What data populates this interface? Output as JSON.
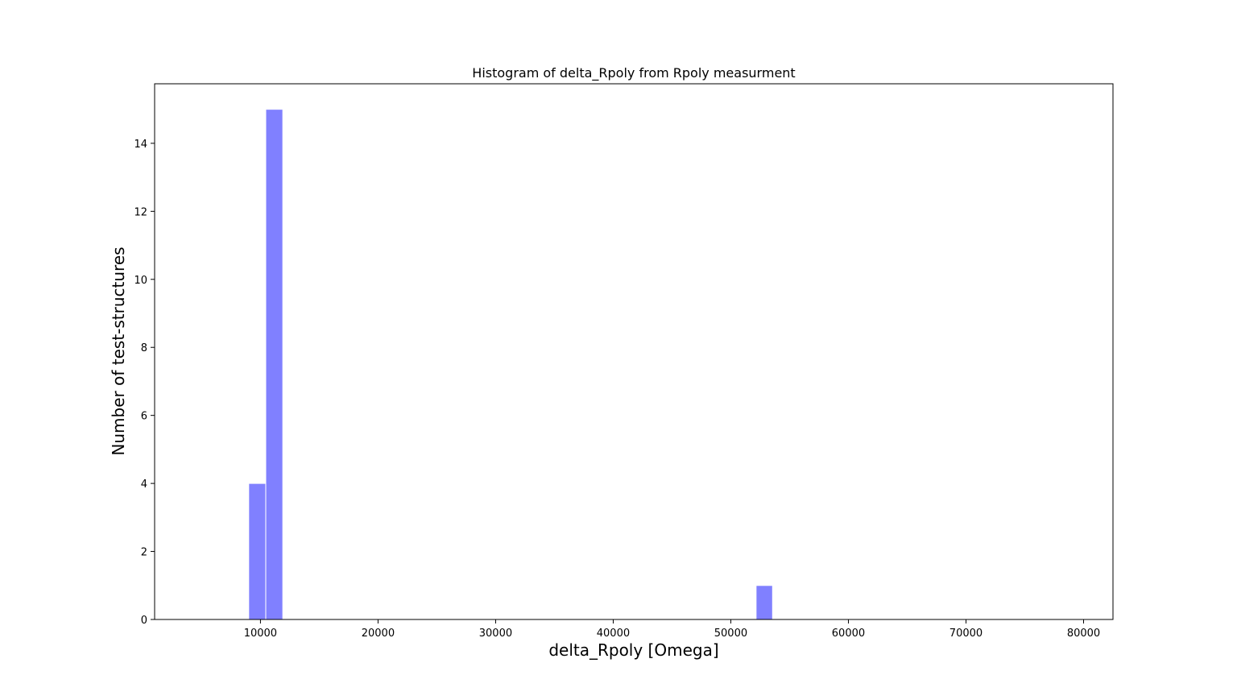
{
  "chart_data": {
    "type": "bar",
    "title": "Histogram of delta_Rpoly from Rpoly measurment",
    "xlabel": "delta_Rpoly [Omega]",
    "ylabel": "Number of test-structures",
    "xlim": [
      1000,
      82500
    ],
    "ylim": [
      0,
      15.75
    ],
    "xticks": [
      10000,
      20000,
      30000,
      40000,
      50000,
      60000,
      70000,
      80000
    ],
    "yticks": [
      0,
      2,
      4,
      6,
      8,
      10,
      12,
      14
    ],
    "bar_color": "#8080ff",
    "edge_color": "#ffffff",
    "bins": [
      {
        "x0": 9000,
        "x1": 10450,
        "count": 4
      },
      {
        "x0": 10450,
        "x1": 11900,
        "count": 15
      },
      {
        "x0": 52150,
        "x1": 53550,
        "count": 1
      }
    ],
    "grid": false,
    "legend": "none"
  }
}
